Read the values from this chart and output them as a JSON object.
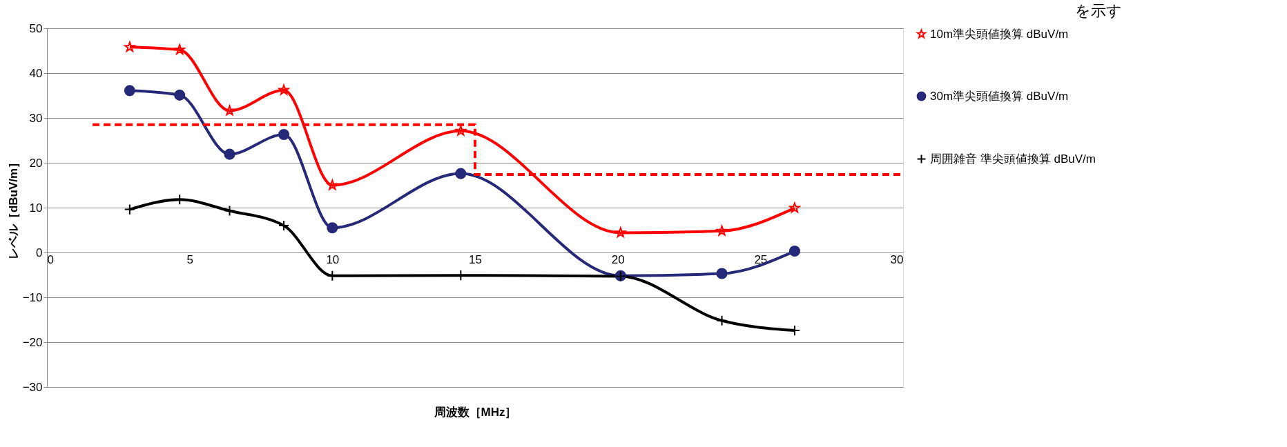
{
  "chart_data": {
    "type": "line",
    "title": "を示す",
    "xlabel": "周波数［MHz］",
    "ylabel": "レベル［dBuV/m］",
    "x": [
      2.9,
      4.65,
      6.4,
      8.3,
      10,
      14.5,
      20.1,
      23.65,
      26.2
    ],
    "series": [
      {
        "name": "10m準尖頭値換算  dBuV/m",
        "color": "#ff0000",
        "marker": "star",
        "values": [
          45.8,
          45.2,
          31.6,
          36.2,
          15.0,
          27.1,
          4.4,
          4.8,
          9.9
        ]
      },
      {
        "name": "30m準尖頭値換算  dBuV/m",
        "color": "#262878",
        "marker": "circle",
        "values": [
          36.1,
          35.1,
          21.9,
          26.3,
          5.5,
          17.6,
          -5.2,
          -4.7,
          0.3
        ]
      },
      {
        "name": "周囲雑音        準尖頭値換算  dBuV/m",
        "color": "#000000",
        "marker": "cross",
        "values": [
          9.6,
          11.8,
          9.3,
          6.0,
          -5.2,
          -5.1,
          -5.3,
          -15.2,
          -17.4
        ]
      },
      {
        "color": "#ff0000",
        "line_style": "dashed",
        "marker": "none",
        "x": [
          1.6,
          15,
          15,
          30
        ],
        "values": [
          28.5,
          28.5,
          17.4,
          17.4
        ]
      }
    ],
    "xlim": [
      0,
      30
    ],
    "xticks": [
      0,
      5,
      10,
      15,
      20,
      25,
      30
    ],
    "ylim": [
      -30,
      50
    ],
    "yticks": [
      -30,
      -20,
      -10,
      0,
      10,
      20,
      30,
      40,
      50
    ],
    "grid": "y",
    "legend": "right"
  }
}
